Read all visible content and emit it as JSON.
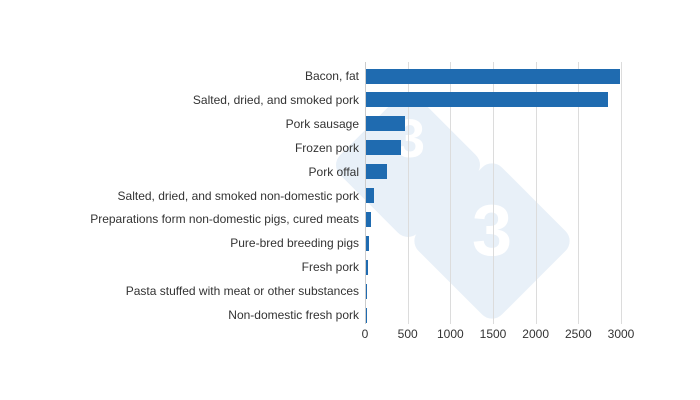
{
  "chart_data": {
    "type": "bar",
    "orientation": "horizontal",
    "title": "",
    "xlabel": "",
    "ylabel": "",
    "categories": [
      "Bacon, fat",
      "Salted, dried, and smoked pork",
      "Pork sausage",
      "Frozen pork",
      "Pork offal",
      "Salted, dried, and smoked non-domestic pork",
      "Preparations form non-domestic pigs, cured meats",
      "Pure-bred breeding pigs",
      "Fresh pork",
      "Pasta stuffed with meat or other substances",
      "Non-domestic fresh pork"
    ],
    "values": [
      2990,
      2850,
      470,
      420,
      260,
      105,
      75,
      50,
      40,
      25,
      15
    ],
    "xlim": [
      0,
      3000
    ],
    "x_ticks": [
      "0",
      "500",
      "1000",
      "1500",
      "2000",
      "2500",
      "3000"
    ],
    "grid": true,
    "legend": null,
    "bar_color": "#1f6bb0"
  },
  "watermark": {
    "digit": "3",
    "color": "#e8f0f8"
  }
}
